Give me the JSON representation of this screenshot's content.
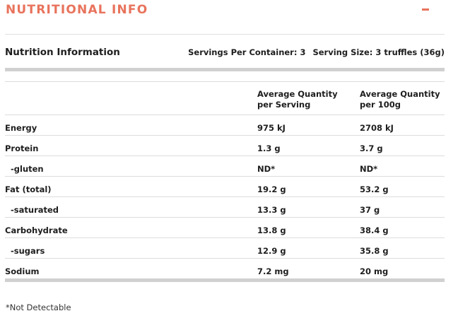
{
  "section": {
    "title": "NUTRITIONAL INFO",
    "collapse_label": "−"
  },
  "info": {
    "title": "Nutrition Information",
    "servings_per_container": "Servings Per Container: 3",
    "serving_size": "Serving Size: 3 truffles (36g)"
  },
  "table": {
    "columns": [
      {
        "line1": "Average Quantity",
        "line2": "per Serving"
      },
      {
        "line1": "Average Quantity",
        "line2": "per 100g"
      }
    ],
    "rows": [
      {
        "name": "Energy",
        "per_serving": "975 kJ",
        "per_100g": "2708 kJ"
      },
      {
        "name": "Protein",
        "per_serving": "1.3 g",
        "per_100g": "3.7 g"
      },
      {
        "name": "-gluten",
        "per_serving": "ND*",
        "per_100g": "ND*"
      },
      {
        "name": "Fat (total)",
        "per_serving": "19.2 g",
        "per_100g": "53.2 g"
      },
      {
        "name": "-saturated",
        "per_serving": "13.3 g",
        "per_100g": "37 g"
      },
      {
        "name": "Carbohydrate",
        "per_serving": "13.8 g",
        "per_100g": "38.4 g"
      },
      {
        "name": "-sugars",
        "per_serving": "12.9 g",
        "per_100g": "35.8 g"
      },
      {
        "name": "Sodium",
        "per_serving": "7.2 mg",
        "per_100g": "20 mg"
      }
    ]
  },
  "footnote": "*Not Detectable",
  "colors": {
    "accent": "#e8735c",
    "text": "#1e1e1e",
    "rule": "#d0d0d0"
  }
}
